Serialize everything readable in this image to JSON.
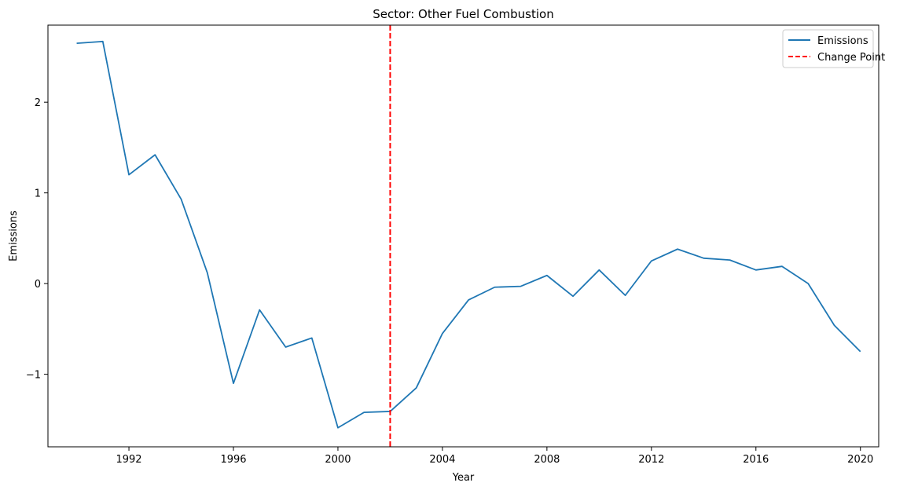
{
  "chart_data": {
    "type": "line",
    "title": "Sector: Other Fuel Combustion",
    "xlabel": "Year",
    "ylabel": "Emissions",
    "xlim": [
      1988.9,
      2020.7
    ],
    "ylim": [
      -1.8,
      2.85
    ],
    "xticks": [
      1992,
      1996,
      2000,
      2004,
      2008,
      2012,
      2016,
      2020
    ],
    "yticks": [
      -1,
      0,
      1,
      2
    ],
    "ytick_labels": [
      "−1",
      "0",
      "1",
      "2"
    ],
    "grid": false,
    "legend_position": "top-right",
    "series": [
      {
        "name": "Emissions",
        "color": "#1f77b4",
        "style": "solid",
        "x": [
          1990,
          1991,
          1992,
          1993,
          1994,
          1995,
          1996,
          1997,
          1998,
          1999,
          2000,
          2001,
          2002,
          2003,
          2004,
          2005,
          2006,
          2007,
          2008,
          2009,
          2010,
          2011,
          2012,
          2013,
          2014,
          2015,
          2016,
          2017,
          2018,
          2019,
          2020
        ],
        "y": [
          2.65,
          2.67,
          1.2,
          1.42,
          0.93,
          0.12,
          -1.1,
          -0.29,
          -0.7,
          -0.6,
          -1.59,
          -1.42,
          -1.41,
          -1.15,
          -0.55,
          -0.18,
          -0.04,
          -0.03,
          0.09,
          -0.14,
          0.15,
          -0.13,
          0.25,
          0.38,
          0.28,
          0.26,
          0.15,
          0.19,
          0.0,
          -0.46,
          -0.75
        ]
      }
    ],
    "change_point": {
      "name": "Change Point",
      "x": 2002,
      "color": "#ff0000",
      "style": "dashed"
    }
  }
}
